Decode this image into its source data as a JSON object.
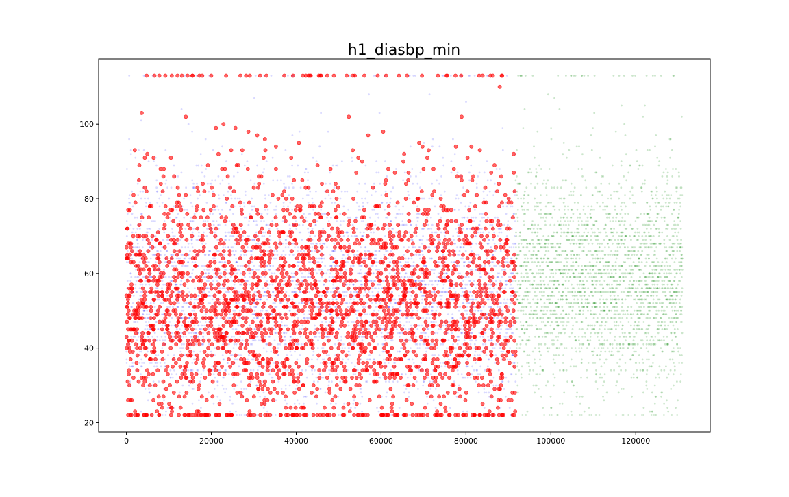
{
  "chart_data": {
    "type": "scatter",
    "title": "h1_diasbp_min",
    "xlabel": "",
    "ylabel": "",
    "xlim": [
      -6550,
      137550
    ],
    "ylim": [
      17.5,
      117.5
    ],
    "xticks": [
      0,
      20000,
      40000,
      60000,
      80000,
      100000,
      120000
    ],
    "xtick_labels": [
      "0",
      "20000",
      "40000",
      "60000",
      "80000",
      "100000",
      "120000"
    ],
    "yticks": [
      20,
      40,
      60,
      80,
      100
    ],
    "ytick_labels": [
      "20",
      "40",
      "60",
      "80",
      "100"
    ],
    "grid": false,
    "legend": "none",
    "series": [
      {
        "role": "train-negative",
        "color": "#0000ff",
        "alpha": 0.15,
        "x_range": [
          0,
          91700
        ],
        "y_range": [
          22,
          113
        ],
        "y_distribution_peak": 55,
        "marker": "small-dot"
      },
      {
        "role": "train-positive",
        "color": "#ff0000",
        "alpha": 0.6,
        "x_range": [
          0,
          91700
        ],
        "y_range": [
          22,
          113
        ],
        "y_distribution_peak": 52,
        "marker": "large-circle",
        "y_floor_cluster": 22,
        "y_ceiling_cluster": 113
      },
      {
        "role": "test",
        "color": "#008000",
        "alpha": 0.2,
        "x_range": [
          91700,
          131000
        ],
        "y_range": [
          22,
          113
        ],
        "y_distribution_peak": 58,
        "marker": "small-dot"
      }
    ]
  }
}
